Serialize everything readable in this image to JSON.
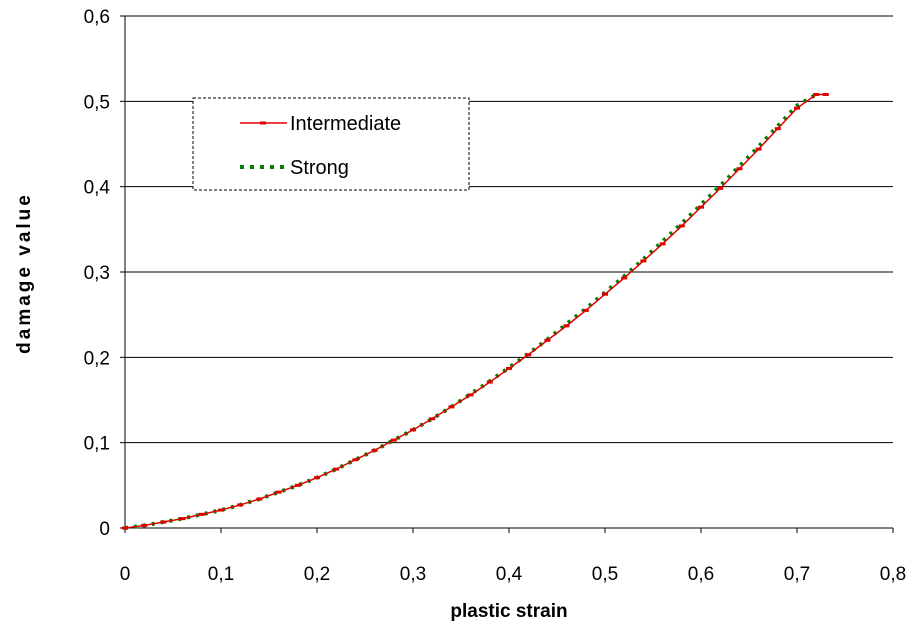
{
  "chart_data": {
    "type": "line",
    "title": "",
    "xlabel": "plastic strain",
    "ylabel": "damage value",
    "xlim": [
      0,
      0.8
    ],
    "ylim": [
      0,
      0.6
    ],
    "xticks": [
      0,
      0.1,
      0.2,
      0.3,
      0.4,
      0.5,
      0.6,
      0.7,
      0.8
    ],
    "yticks": [
      0,
      0.1,
      0.2,
      0.3,
      0.4,
      0.5,
      0.6
    ],
    "xtick_labels": [
      "0",
      "0,1",
      "0,2",
      "0,3",
      "0,4",
      "0,5",
      "0,6",
      "0,7",
      "0,8"
    ],
    "ytick_labels": [
      "0",
      "0,1",
      "0,2",
      "0,3",
      "0,4",
      "0,5",
      "0,6"
    ],
    "grid": "horizontal",
    "legend_position": "top-left",
    "series": [
      {
        "name": "Intermediate",
        "color": "#e00000",
        "style": "solid-with-markers",
        "x": [
          0,
          0.02,
          0.04,
          0.06,
          0.08,
          0.1,
          0.12,
          0.14,
          0.16,
          0.18,
          0.2,
          0.22,
          0.24,
          0.26,
          0.28,
          0.3,
          0.32,
          0.34,
          0.36,
          0.38,
          0.4,
          0.42,
          0.44,
          0.46,
          0.48,
          0.5,
          0.52,
          0.54,
          0.56,
          0.58,
          0.6,
          0.62,
          0.64,
          0.66,
          0.68,
          0.7,
          0.72,
          0.73
        ],
        "y": [
          0,
          0.003,
          0.007,
          0.011,
          0.016,
          0.021,
          0.027,
          0.034,
          0.042,
          0.05,
          0.059,
          0.069,
          0.08,
          0.091,
          0.103,
          0.115,
          0.128,
          0.142,
          0.156,
          0.171,
          0.187,
          0.203,
          0.22,
          0.237,
          0.255,
          0.274,
          0.293,
          0.313,
          0.333,
          0.354,
          0.376,
          0.398,
          0.421,
          0.444,
          0.468,
          0.492,
          0.508,
          0.508
        ]
      },
      {
        "name": "Strong",
        "color": "#008000",
        "style": "dotted",
        "x": [
          0,
          0.02,
          0.04,
          0.06,
          0.08,
          0.1,
          0.12,
          0.14,
          0.16,
          0.18,
          0.2,
          0.22,
          0.24,
          0.26,
          0.28,
          0.3,
          0.32,
          0.34,
          0.36,
          0.38,
          0.4,
          0.42,
          0.44,
          0.46,
          0.48,
          0.5,
          0.52,
          0.54,
          0.56,
          0.58,
          0.6,
          0.62,
          0.64,
          0.66,
          0.68,
          0.7,
          0.72
        ],
        "y": [
          0,
          0.003,
          0.007,
          0.011,
          0.016,
          0.021,
          0.027,
          0.034,
          0.042,
          0.05,
          0.059,
          0.069,
          0.08,
          0.091,
          0.103,
          0.115,
          0.128,
          0.142,
          0.157,
          0.172,
          0.188,
          0.204,
          0.221,
          0.239,
          0.257,
          0.276,
          0.295,
          0.315,
          0.336,
          0.357,
          0.379,
          0.401,
          0.424,
          0.447,
          0.471,
          0.495,
          0.508
        ]
      }
    ]
  }
}
